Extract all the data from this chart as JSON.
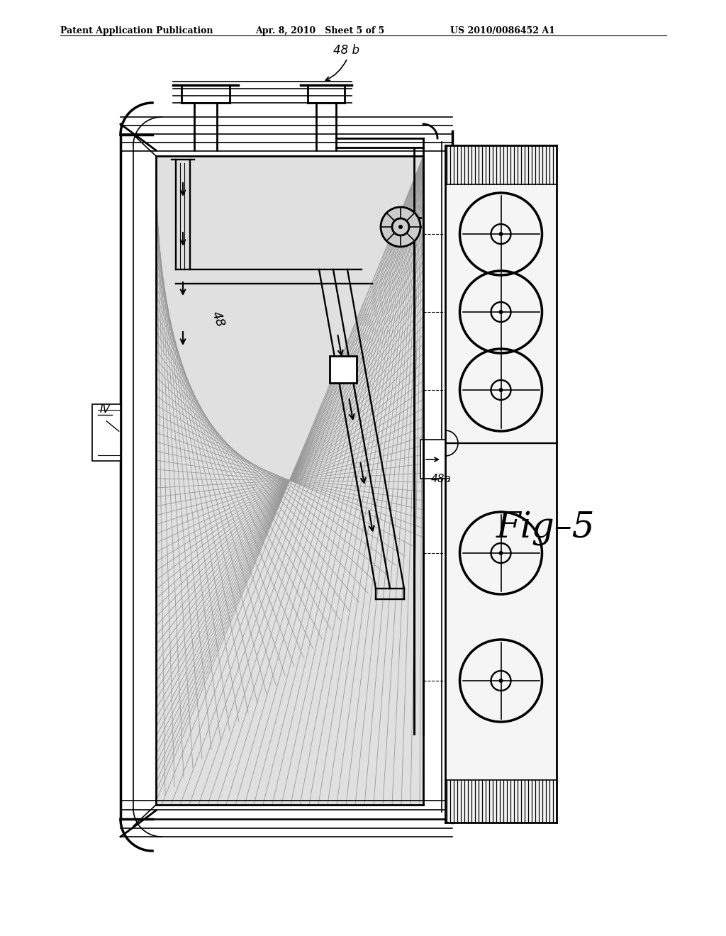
{
  "title_left": "Patent Application Publication",
  "title_mid": "Apr. 8, 2010   Sheet 5 of 5",
  "title_right": "US 2010/0086452 A1",
  "fig_label": "Fig–5",
  "label_48": "48",
  "label_48a": "48a",
  "label_48b": "48 b",
  "label_IV": "IV",
  "bg_color": "#ffffff",
  "line_color": "#000000"
}
